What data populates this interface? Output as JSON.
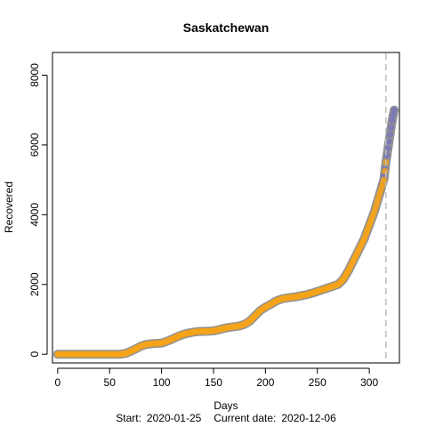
{
  "chart_data": {
    "type": "scatter",
    "title": "Saskatchewan",
    "xlabel": "Days",
    "ylabel": "Recovered",
    "xlim": [
      -5,
      329
    ],
    "ylim": [
      -250,
      8650
    ],
    "xticks": [
      0,
      50,
      100,
      150,
      200,
      250,
      300
    ],
    "yticks": [
      0,
      2000,
      4000,
      6000,
      8000
    ],
    "xtick_labels": [
      "0",
      "50",
      "100",
      "150",
      "200",
      "250",
      "300"
    ],
    "ytick_labels": [
      "0",
      "2000",
      "4000",
      "6000",
      "8000"
    ],
    "current_day_marker": 316,
    "footer": {
      "start_label": "Start:",
      "start_date": "2020-01-25",
      "current_label": "Current date:",
      "current_date": "2020-12-06"
    },
    "colors": {
      "observed": "#f5a31a",
      "forecast": "#7b78b8",
      "band": "#7f7f7f",
      "marker_line": "#bdbdbd"
    },
    "series": [
      {
        "role": "observed",
        "x": [
          0,
          20,
          40,
          60,
          65,
          70,
          75,
          80,
          85,
          90,
          95,
          100,
          105,
          110,
          115,
          120,
          125,
          130,
          135,
          140,
          145,
          150,
          155,
          160,
          165,
          170,
          175,
          180,
          185,
          190,
          195,
          200,
          205,
          210,
          215,
          220,
          225,
          230,
          235,
          240,
          245,
          250,
          255,
          260,
          265,
          270,
          275,
          280,
          285,
          290,
          295,
          300,
          305,
          310,
          312,
          314,
          316
        ],
        "y": [
          0,
          0,
          0,
          0,
          20,
          80,
          150,
          230,
          280,
          300,
          310,
          320,
          370,
          430,
          500,
          560,
          600,
          630,
          650,
          655,
          660,
          670,
          700,
          740,
          770,
          790,
          810,
          860,
          950,
          1100,
          1250,
          1350,
          1430,
          1520,
          1580,
          1610,
          1630,
          1650,
          1680,
          1710,
          1750,
          1800,
          1850,
          1900,
          1950,
          2000,
          2150,
          2400,
          2700,
          3000,
          3300,
          3700,
          4100,
          4600,
          4800,
          5000,
          5500
        ]
      },
      {
        "role": "forecast",
        "x": [
          310,
          312,
          314,
          316,
          318,
          320,
          322,
          324
        ],
        "y": [
          4600,
          4850,
          5100,
          5500,
          5900,
          6300,
          6700,
          7000
        ]
      }
    ]
  }
}
